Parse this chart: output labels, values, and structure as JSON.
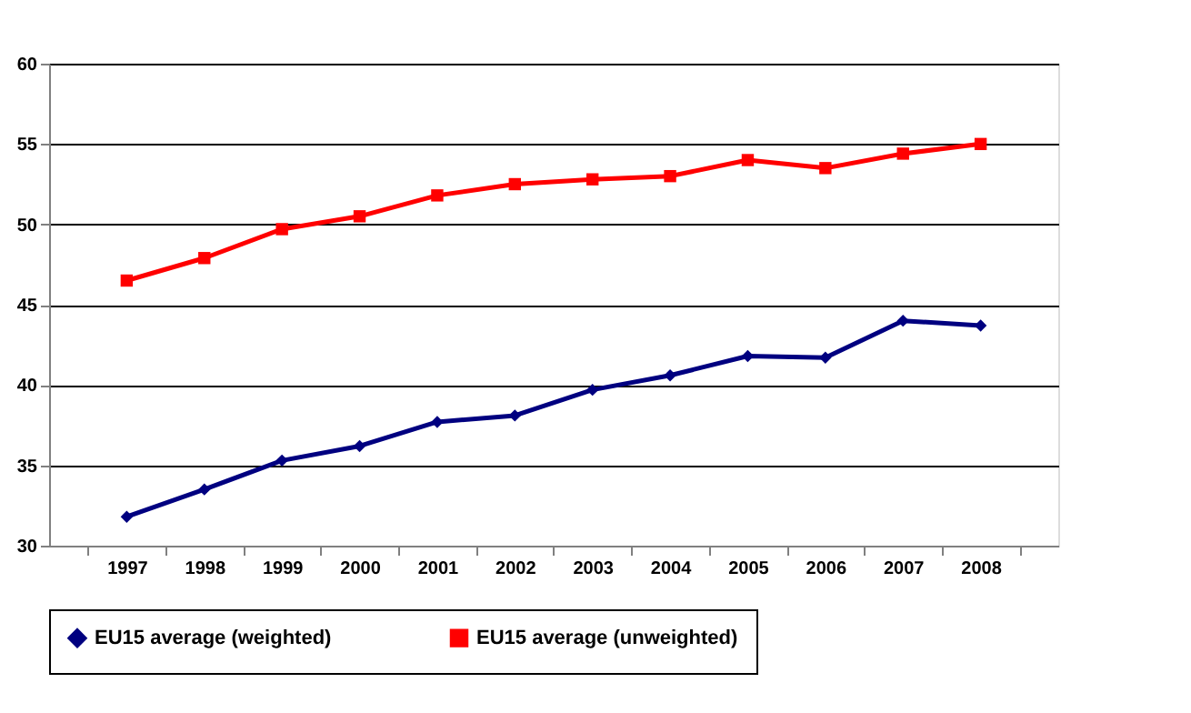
{
  "chart_data": {
    "type": "line",
    "categories": [
      "1997",
      "1998",
      "1999",
      "2000",
      "2001",
      "2002",
      "2003",
      "2004",
      "2005",
      "2006",
      "2007",
      "2008"
    ],
    "series": [
      {
        "name": "EU15 average (weighted)",
        "color": "#000080",
        "marker": "diamond",
        "values": [
          31.8,
          33.5,
          35.3,
          36.2,
          37.7,
          38.1,
          39.7,
          40.6,
          41.8,
          41.7,
          44.0,
          43.7
        ]
      },
      {
        "name": "EU15 average (unweighted)",
        "color": "#ff0000",
        "marker": "square",
        "values": [
          46.5,
          47.9,
          49.7,
          50.5,
          51.8,
          52.5,
          52.8,
          53.0,
          54.0,
          53.5,
          54.4,
          55.0
        ]
      }
    ],
    "ylim": [
      30,
      60
    ],
    "yticks": [
      30,
      35,
      40,
      45,
      50,
      55,
      60
    ],
    "grid": "y",
    "legend": "bottom"
  }
}
